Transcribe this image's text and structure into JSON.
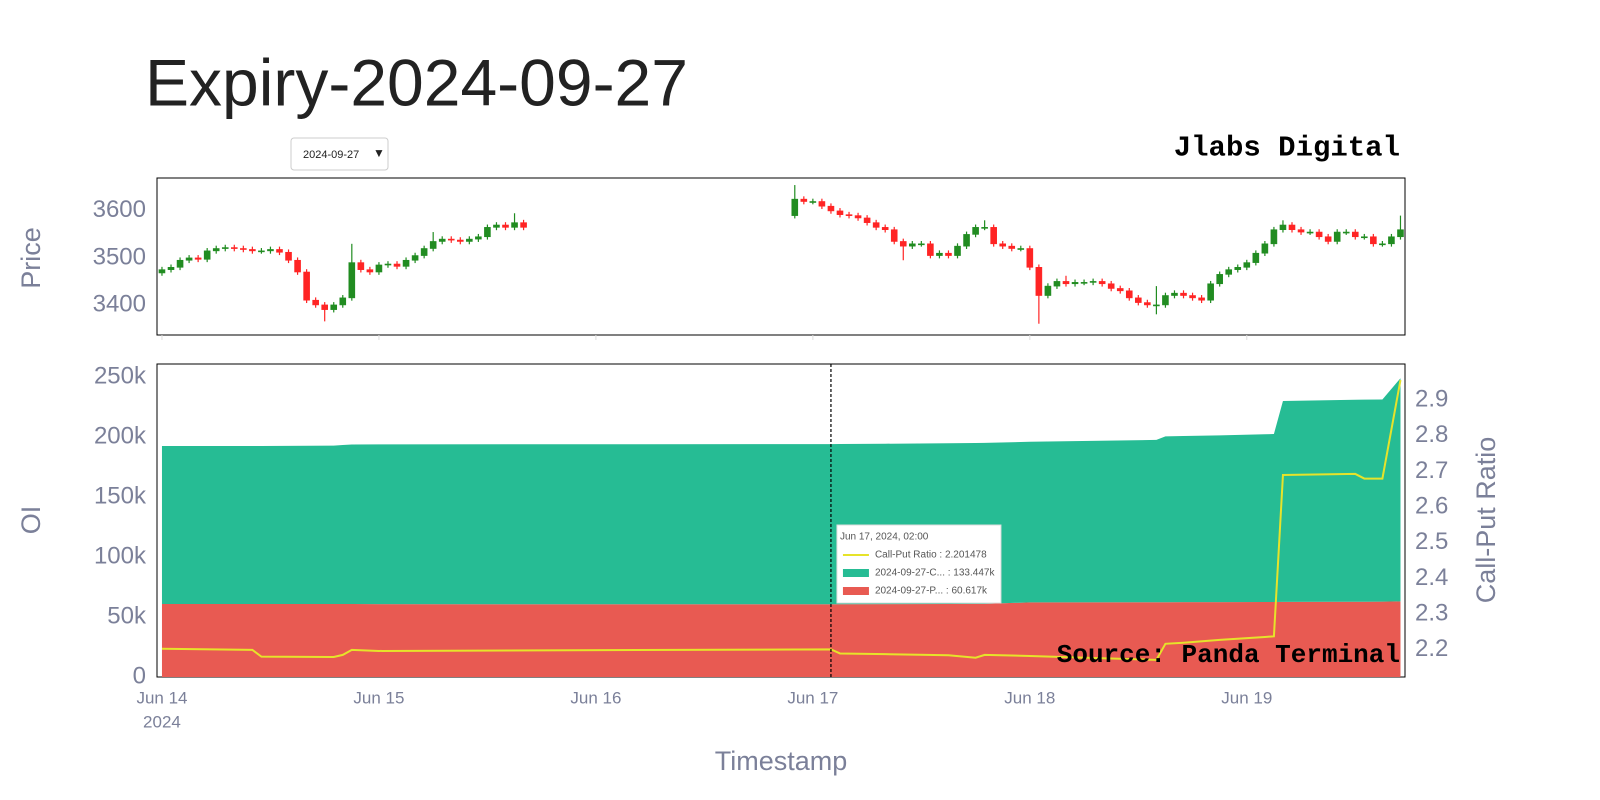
{
  "title": "Expiry-2024-09-27",
  "dropdown": {
    "value": "2024-09-27",
    "arrow": "▼"
  },
  "brand": "Jlabs Digital",
  "chart_data": [
    {
      "type": "candlestick",
      "ylabel": "Price",
      "xlim": [
        "2024-06-13 23:27",
        "2024-06-19 17:30"
      ],
      "ylim": [
        3336,
        3670
      ],
      "yticks": [
        3400,
        3500,
        3600
      ],
      "increasing_color": "#218c21",
      "decreasing_color": "#ff2424",
      "x": [
        "2024-06-14 00:00",
        "2024-06-14 01:00",
        "2024-06-14 02:00",
        "2024-06-14 03:00",
        "2024-06-14 04:00",
        "2024-06-14 05:00",
        "2024-06-14 06:00",
        "2024-06-14 07:00",
        "2024-06-14 08:00",
        "2024-06-14 09:00",
        "2024-06-14 10:00",
        "2024-06-14 11:00",
        "2024-06-14 12:00",
        "2024-06-14 13:00",
        "2024-06-14 14:00",
        "2024-06-14 15:00",
        "2024-06-14 16:00",
        "2024-06-14 17:00",
        "2024-06-14 18:00",
        "2024-06-14 19:00",
        "2024-06-14 20:00",
        "2024-06-14 21:00",
        "2024-06-14 22:00",
        "2024-06-14 23:00",
        "2024-06-15 00:00",
        "2024-06-15 01:00",
        "2024-06-15 02:00",
        "2024-06-15 03:00",
        "2024-06-15 04:00",
        "2024-06-15 05:00",
        "2024-06-15 06:00",
        "2024-06-15 07:00",
        "2024-06-15 08:00",
        "2024-06-15 09:00",
        "2024-06-15 10:00",
        "2024-06-15 11:00",
        "2024-06-15 12:00",
        "2024-06-15 13:00",
        "2024-06-15 14:00",
        "2024-06-15 15:00",
        "2024-06-15 16:00",
        "2024-06-16 22:00",
        "2024-06-16 23:00",
        "2024-06-17 00:00",
        "2024-06-17 01:00",
        "2024-06-17 02:00",
        "2024-06-17 03:00",
        "2024-06-17 04:00",
        "2024-06-17 05:00",
        "2024-06-17 06:00",
        "2024-06-17 07:00",
        "2024-06-17 08:00",
        "2024-06-17 09:00",
        "2024-06-17 10:00",
        "2024-06-17 11:00",
        "2024-06-17 12:00",
        "2024-06-17 13:00",
        "2024-06-17 14:00",
        "2024-06-17 15:00",
        "2024-06-17 16:00",
        "2024-06-17 17:00",
        "2024-06-17 18:00",
        "2024-06-17 19:00",
        "2024-06-17 20:00",
        "2024-06-17 21:00",
        "2024-06-17 22:00",
        "2024-06-17 23:00",
        "2024-06-18 00:00",
        "2024-06-18 01:00",
        "2024-06-18 02:00",
        "2024-06-18 03:00",
        "2024-06-18 04:00",
        "2024-06-18 05:00",
        "2024-06-18 06:00",
        "2024-06-18 07:00",
        "2024-06-18 08:00",
        "2024-06-18 09:00",
        "2024-06-18 10:00",
        "2024-06-18 11:00",
        "2024-06-18 12:00",
        "2024-06-18 13:00",
        "2024-06-18 14:00",
        "2024-06-18 15:00",
        "2024-06-18 16:00",
        "2024-06-18 17:00",
        "2024-06-18 18:00",
        "2024-06-18 19:00",
        "2024-06-18 20:00",
        "2024-06-18 21:00",
        "2024-06-18 22:00",
        "2024-06-18 23:00",
        "2024-06-19 00:00",
        "2024-06-19 01:00",
        "2024-06-19 02:00",
        "2024-06-19 03:00",
        "2024-06-19 04:00",
        "2024-06-19 05:00",
        "2024-06-19 06:00",
        "2024-06-19 07:00",
        "2024-06-19 08:00",
        "2024-06-19 09:00",
        "2024-06-19 10:00",
        "2024-06-19 11:00",
        "2024-06-19 12:00",
        "2024-06-19 13:00",
        "2024-06-19 14:00",
        "2024-06-19 15:00",
        "2024-06-19 16:00",
        "2024-06-19 17:00"
      ],
      "open": [
        3468,
        3475,
        3480,
        3495,
        3500,
        3497,
        3515,
        3520,
        3522,
        3520,
        3518,
        3515,
        3515,
        3518,
        3512,
        3495,
        3470,
        3410,
        3400,
        3390,
        3400,
        3415,
        3490,
        3475,
        3470,
        3485,
        3487,
        3482,
        3495,
        3505,
        3520,
        3535,
        3540,
        3538,
        3535,
        3540,
        3545,
        3565,
        3570,
        3565,
        3575,
        3590,
        3625,
        3620,
        3620,
        3610,
        3600,
        3592,
        3590,
        3585,
        3575,
        3565,
        3560,
        3535,
        3525,
        3530,
        3530,
        3505,
        3510,
        3505,
        3525,
        3550,
        3565,
        3565,
        3530,
        3525,
        3520,
        3520,
        3480,
        3420,
        3440,
        3450,
        3445,
        3448,
        3448,
        3450,
        3445,
        3435,
        3430,
        3415,
        3405,
        3400,
        3400,
        3420,
        3425,
        3420,
        3415,
        3410,
        3445,
        3465,
        3475,
        3480,
        3490,
        3510,
        3530,
        3560,
        3570,
        3560,
        3555,
        3555,
        3545,
        3535,
        3555,
        3555,
        3545,
        3545,
        3530,
        3530,
        3545
      ],
      "high": [
        3481,
        3486,
        3501,
        3506,
        3506,
        3521,
        3526,
        3528,
        3528,
        3526,
        3524,
        3521,
        3524,
        3524,
        3518,
        3501,
        3476,
        3416,
        3406,
        3406,
        3421,
        3530,
        3496,
        3481,
        3491,
        3493,
        3493,
        3501,
        3511,
        3526,
        3555,
        3546,
        3546,
        3544,
        3546,
        3551,
        3571,
        3576,
        3576,
        3595,
        3581,
        3655,
        3631,
        3626,
        3626,
        3616,
        3606,
        3598,
        3596,
        3591,
        3581,
        3571,
        3566,
        3541,
        3536,
        3536,
        3536,
        3516,
        3516,
        3531,
        3556,
        3571,
        3580,
        3571,
        3536,
        3531,
        3526,
        3526,
        3486,
        3446,
        3456,
        3462,
        3454,
        3454,
        3456,
        3456,
        3451,
        3441,
        3436,
        3421,
        3411,
        3440,
        3426,
        3431,
        3431,
        3426,
        3421,
        3451,
        3471,
        3481,
        3486,
        3496,
        3516,
        3536,
        3566,
        3580,
        3576,
        3566,
        3561,
        3561,
        3551,
        3561,
        3561,
        3561,
        3551,
        3551,
        3536,
        3551,
        3590
      ],
      "low": [
        3462,
        3469,
        3474,
        3489,
        3491,
        3491,
        3509,
        3514,
        3514,
        3512,
        3509,
        3509,
        3509,
        3506,
        3489,
        3464,
        3404,
        3394,
        3365,
        3384,
        3394,
        3409,
        3469,
        3464,
        3464,
        3479,
        3476,
        3476,
        3489,
        3499,
        3514,
        3529,
        3532,
        3529,
        3529,
        3534,
        3539,
        3559,
        3559,
        3559,
        3559,
        3584,
        3614,
        3614,
        3604,
        3594,
        3586,
        3584,
        3579,
        3569,
        3559,
        3554,
        3529,
        3495,
        3519,
        3524,
        3499,
        3499,
        3499,
        3499,
        3519,
        3544,
        3559,
        3524,
        3519,
        3514,
        3514,
        3474,
        3360,
        3414,
        3434,
        3439,
        3439,
        3442,
        3442,
        3439,
        3429,
        3424,
        3409,
        3399,
        3394,
        3380,
        3394,
        3414,
        3414,
        3409,
        3404,
        3404,
        3439,
        3459,
        3469,
        3474,
        3484,
        3504,
        3524,
        3554,
        3554,
        3549,
        3549,
        3539,
        3529,
        3529,
        3549,
        3539,
        3539,
        3524,
        3524,
        3524,
        3539
      ],
      "close": [
        3475,
        3480,
        3495,
        3500,
        3497,
        3515,
        3520,
        3522,
        3520,
        3518,
        3515,
        3515,
        3518,
        3512,
        3495,
        3470,
        3410,
        3400,
        3390,
        3400,
        3415,
        3490,
        3475,
        3470,
        3485,
        3487,
        3482,
        3495,
        3505,
        3520,
        3535,
        3540,
        3538,
        3535,
        3540,
        3545,
        3565,
        3570,
        3565,
        3575,
        3565,
        3625,
        3620,
        3620,
        3610,
        3600,
        3592,
        3590,
        3585,
        3575,
        3565,
        3560,
        3535,
        3525,
        3530,
        3530,
        3505,
        3510,
        3505,
        3525,
        3550,
        3565,
        3565,
        3530,
        3525,
        3520,
        3520,
        3480,
        3420,
        3440,
        3450,
        3445,
        3448,
        3448,
        3450,
        3445,
        3435,
        3430,
        3415,
        3405,
        3400,
        3400,
        3420,
        3425,
        3420,
        3415,
        3410,
        3445,
        3465,
        3475,
        3480,
        3490,
        3510,
        3530,
        3560,
        3570,
        3560,
        3555,
        3555,
        3545,
        3535,
        3555,
        3555,
        3545,
        3545,
        3530,
        3530,
        3545,
        3560
      ]
    },
    {
      "type": "stacked-area",
      "ylabel": "OI",
      "y2label": "Call-Put Ratio",
      "xlabel": "Timestamp",
      "xlim": [
        "2024-06-13 23:27",
        "2024-06-19 17:30"
      ],
      "xticks": [
        {
          "value": "2024-06-14 00:00",
          "label": "Jun 14"
        },
        {
          "value": "2024-06-15 00:00",
          "label": "Jun 15"
        },
        {
          "value": "2024-06-16 00:00",
          "label": "Jun 16"
        },
        {
          "value": "2024-06-17 00:00",
          "label": "Jun 17"
        },
        {
          "value": "2024-06-18 00:00",
          "label": "Jun 18"
        },
        {
          "value": "2024-06-19 00:00",
          "label": "Jun 19"
        }
      ],
      "x_year_label": "2024",
      "ylim": [
        0,
        260833
      ],
      "yticks": [
        0,
        {
          "value": 50000,
          "label": "50k"
        },
        {
          "value": 100000,
          "label": "100k"
        },
        {
          "value": 150000,
          "label": "150k"
        },
        {
          "value": 200000,
          "label": "200k"
        },
        {
          "value": 250000,
          "label": "250k"
        }
      ],
      "y2lim": [
        2.124,
        3.001
      ],
      "y2ticks": [
        2.2,
        2.3,
        2.4,
        2.5,
        2.6,
        2.7,
        2.8,
        2.9
      ],
      "x": [
        "2024-06-14 00:00",
        "2024-06-14 10:00",
        "2024-06-14 11:00",
        "2024-06-14 19:00",
        "2024-06-14 20:00",
        "2024-06-14 21:00",
        "2024-06-15 00:00",
        "2024-06-17 02:00",
        "2024-06-17 03:00",
        "2024-06-17 08:00",
        "2024-06-17 15:00",
        "2024-06-17 18:00",
        "2024-06-17 19:00",
        "2024-06-18 00:00",
        "2024-06-18 14:00",
        "2024-06-18 15:00",
        "2024-06-18 17:00",
        "2024-06-18 21:00",
        "2024-06-19 02:00",
        "2024-06-19 03:00",
        "2024-06-19 04:00",
        "2024-06-19 12:00",
        "2024-06-19 13:00",
        "2024-06-19 15:00",
        "2024-06-19 17:00"
      ],
      "series": [
        {
          "type": "area",
          "color": "#e85a52",
          "values": [
            60800,
            60800,
            60800,
            60800,
            60800,
            60800,
            60700,
            60617,
            60600,
            60700,
            60800,
            60900,
            60900,
            62200,
            62300,
            62300,
            62400,
            62400,
            62500,
            62500,
            62600,
            62700,
            62700,
            62800,
            63000
          ]
        },
        {
          "type": "area",
          "color": "#26bc94",
          "values": [
            131700,
            131700,
            131700,
            132000,
            132500,
            133000,
            133200,
            133447,
            133600,
            133700,
            134000,
            134100,
            134200,
            133800,
            135300,
            138200,
            138400,
            139000,
            139800,
            140000,
            167400,
            168300,
            168400,
            168500,
            186000
          ]
        },
        {
          "type": "line",
          "axis": "y2",
          "color": "#e6e32a",
          "values": [
            2.203,
            2.2,
            2.181,
            2.18,
            2.186,
            2.2,
            2.197,
            2.201478,
            2.19,
            2.188,
            2.185,
            2.178,
            2.186,
            2.183,
            2.172,
            2.217,
            2.22,
            2.228,
            2.236,
            2.238,
            2.69,
            2.693,
            2.68,
            2.68,
            2.956
          ]
        }
      ],
      "tooltip": {
        "title": "Jun 17, 2024, 02:00",
        "rows": [
          "Call-Put Ratio : 2.201478",
          "2024-09-27-C... : 133.447k",
          "2024-09-27-P... : 60.617k"
        ]
      },
      "annotation": "Source: Panda Terminal"
    }
  ]
}
